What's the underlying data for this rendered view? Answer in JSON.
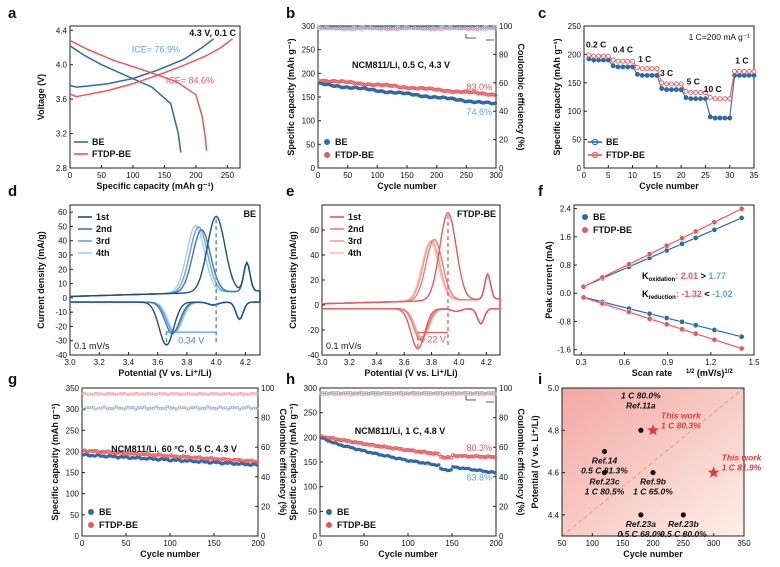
{
  "colors": {
    "be": "#2f6aa8",
    "ftdp": "#e8595c",
    "be_light": "#5aa8de",
    "ce_be": "#8fa9cc",
    "ce_ftdp": "#f09a9c",
    "axis": "#222222",
    "dash_blue": "#3e86c8",
    "dash_red": "#e8595c",
    "star": "#e53935",
    "dot": "#111111"
  },
  "panels": {
    "a": "a",
    "b": "b",
    "c": "c",
    "d": "d",
    "e": "e",
    "f": "f",
    "g": "g",
    "h": "h",
    "i": "i"
  },
  "chart_data": [
    {
      "id": "a",
      "type": "line",
      "xlabel": "Specific capacity (mAh g⁻¹)",
      "ylabel": "Voltage (V)",
      "xlim": [
        0,
        270
      ],
      "ylim": [
        2.8,
        4.45
      ],
      "xticks": [
        "0",
        "50",
        "100",
        "150",
        "200",
        "250"
      ],
      "yticks": [
        "2.8",
        "3.2",
        "3.6",
        "4.0",
        "4.4"
      ],
      "annotations": [
        "4.3 V, 0.1 C",
        "ICE= 76.9%",
        "ICE= 84.6%"
      ],
      "legend": [
        "BE",
        "FTDP-BE"
      ],
      "series": [
        {
          "name": "BE charge",
          "x": [
            0,
            10,
            25,
            60,
            100,
            140,
            180,
            210,
            228
          ],
          "y": [
            3.76,
            3.74,
            3.75,
            3.78,
            3.84,
            3.94,
            4.06,
            4.2,
            4.3
          ]
        },
        {
          "name": "BE discharge",
          "x": [
            0,
            20,
            50,
            90,
            130,
            160,
            172,
            176
          ],
          "y": [
            4.22,
            4.12,
            4.0,
            3.87,
            3.74,
            3.55,
            3.2,
            2.98
          ]
        },
        {
          "name": "FTDP-BE charge",
          "x": [
            0,
            10,
            25,
            60,
            100,
            140,
            180,
            215,
            240,
            258
          ],
          "y": [
            3.66,
            3.63,
            3.65,
            3.7,
            3.78,
            3.88,
            3.99,
            4.1,
            4.2,
            4.3
          ]
        },
        {
          "name": "FTDP-BE discharge",
          "x": [
            0,
            30,
            70,
            120,
            170,
            200,
            210,
            215,
            217
          ],
          "y": [
            4.28,
            4.17,
            4.05,
            3.93,
            3.8,
            3.65,
            3.4,
            3.15,
            3.0
          ]
        }
      ]
    },
    {
      "id": "b",
      "type": "scatter",
      "xlabel": "Cycle number",
      "ylabel": "Specific capacity (mAh g⁻¹)",
      "y2label": "Coulombic efficiency (%)",
      "xlim": [
        0,
        300
      ],
      "ylim": [
        0,
        300
      ],
      "y2lim": [
        0,
        100
      ],
      "xticks": [
        "0",
        "50",
        "100",
        "150",
        "200",
        "250",
        "300"
      ],
      "yticks": [
        "0",
        "50",
        "100",
        "150",
        "200",
        "250",
        "300"
      ],
      "y2ticks": [
        "0",
        "20",
        "40",
        "60",
        "80",
        "100"
      ],
      "annotations": [
        "NCM811/Li, 0.5 C, 4.3 V",
        "83.0%",
        "74.6%"
      ],
      "legend": [
        "BE",
        "FTDP-BE"
      ],
      "series": [
        {
          "name": "BE",
          "x": [
            0,
            300
          ],
          "y": [
            178,
            135
          ]
        },
        {
          "name": "FTDP-BE",
          "x": [
            0,
            300
          ],
          "y": [
            186,
            155
          ]
        },
        {
          "name": "CE BE",
          "x": [
            0,
            300
          ],
          "y": [
            98.5,
            99.0
          ]
        },
        {
          "name": "CE FTDP-BE",
          "x": [
            0,
            300
          ],
          "y": [
            97.8,
            98.5
          ]
        }
      ]
    },
    {
      "id": "c",
      "type": "line",
      "xlabel": "Cycle number",
      "ylabel": "Specific capacity (mAh g⁻¹)",
      "xlim": [
        0,
        35
      ],
      "ylim": [
        0,
        250
      ],
      "xticks": [
        "0",
        "5",
        "10",
        "15",
        "20",
        "25",
        "30",
        "35"
      ],
      "yticks": [
        "0",
        "50",
        "100",
        "150",
        "200",
        "250"
      ],
      "annotations": [
        "1 C=200 mA g⁻¹",
        "0.2 C",
        "0.4 C",
        "1 C",
        "3 C",
        "5 C",
        "10 C",
        "1 C"
      ],
      "legend": [
        "BE",
        "FTDP-BE"
      ],
      "series": [
        {
          "name": "BE",
          "steps": [
            190,
            178,
            163,
            138,
            122,
            88,
            163
          ]
        },
        {
          "name": "FTDP-BE",
          "steps": [
            197,
            188,
            175,
            148,
            133,
            122,
            170
          ]
        }
      ]
    },
    {
      "id": "d",
      "type": "line",
      "xlabel": "Potential (V vs. Li⁺/Li)",
      "ylabel": "Current density (mA/g)",
      "xlim": [
        3.0,
        4.3
      ],
      "ylim": [
        -40,
        65
      ],
      "xticks": [
        "3.0",
        "3.2",
        "3.4",
        "3.6",
        "3.8",
        "4.0",
        "4.2"
      ],
      "yticks": [
        "-40",
        "-30",
        "-20",
        "-10",
        "0",
        "10",
        "20",
        "30",
        "40",
        "50",
        "60"
      ],
      "annotations": [
        "BE",
        "0.1 mV/s",
        "0.34 V"
      ],
      "legend": [
        "1st",
        "2nd",
        "3rd",
        "4th"
      ],
      "peaks": {
        "anodic": [
          4.0,
          3.9,
          3.88,
          3.86
        ],
        "anodic_i": [
          53,
          44,
          46,
          47
        ],
        "cathodic": [
          3.66,
          3.7,
          3.71,
          3.72
        ],
        "cathodic_i": [
          -30,
          -22,
          -21,
          -21
        ]
      }
    },
    {
      "id": "e",
      "type": "line",
      "xlabel": "Potential (V vs. Li⁺/Li)",
      "ylabel": "Current density (mA/g)",
      "xlim": [
        3.0,
        4.3
      ],
      "ylim": [
        -40,
        80
      ],
      "xticks": [
        "3.0",
        "3.2",
        "3.4",
        "3.6",
        "3.8",
        "4.0",
        "4.2"
      ],
      "yticks": [
        "-40",
        "-20",
        "0",
        "20",
        "40",
        "60"
      ],
      "annotations": [
        "FTDP-BE",
        "0.1 mV/s",
        "0.22 V"
      ],
      "legend": [
        "1st",
        "2nd",
        "3rd",
        "4th"
      ],
      "peaks": {
        "anodic": [
          3.92,
          3.82,
          3.8,
          3.79
        ],
        "anodic_i": [
          70,
          49,
          48,
          47
        ],
        "cathodic": [
          3.7,
          3.72,
          3.73,
          3.73
        ],
        "cathodic_i": [
          -32,
          -25,
          -24,
          -24
        ]
      }
    },
    {
      "id": "f",
      "type": "scatter",
      "xlabel": "Scan rate",
      "ylabel": "Peak current (mA)",
      "xlim": [
        0.25,
        1.5
      ],
      "ylim": [
        -1.75,
        2.5
      ],
      "xticks": [
        "0.3",
        "0.6",
        "0.9",
        "1.2",
        "1.5"
      ],
      "yticks": [
        "-1.6",
        "-0.8",
        "0.0",
        "0.8",
        "1.6",
        "2.4"
      ],
      "annotations": [
        "2.01",
        "1.77",
        "-1.32",
        "-1.02"
      ],
      "annotation_words": {
        "k": "K",
        "oxidation": "oxidation",
        "reduction": "reduction",
        "gt": ">",
        "lt": "<"
      },
      "legend": [
        "BE",
        "FTDP-BE"
      ],
      "x": [
        0.316,
        0.447,
        0.632,
        0.775,
        0.894,
        1.0,
        1.095,
        1.225,
        1.414
      ],
      "series": [
        {
          "name": "BE ox",
          "slope": 1.77,
          "intercept": -0.37
        },
        {
          "name": "FTDP-BE ox",
          "slope": 2.01,
          "intercept": -0.45
        },
        {
          "name": "BE red",
          "slope": -1.02,
          "intercept": 0.21
        },
        {
          "name": "FTDP-BE red",
          "slope": -1.32,
          "intercept": 0.3
        }
      ]
    },
    {
      "id": "g",
      "type": "scatter",
      "xlabel": "Cycle number",
      "ylabel": "Specific capacity (mAh g⁻¹)",
      "y2label": "Coulombic efficiency (%)",
      "xlim": [
        0,
        200
      ],
      "ylim": [
        0,
        350
      ],
      "y2lim": [
        0,
        100
      ],
      "xticks": [
        "0",
        "50",
        "100",
        "150",
        "200"
      ],
      "yticks": [
        "0",
        "50",
        "100",
        "150",
        "200",
        "250",
        "300",
        "350"
      ],
      "y2ticks": [
        "0",
        "20",
        "40",
        "60",
        "80",
        "100"
      ],
      "annotations": [
        "NCM811/Li, 60 °C, 0.5 C, 4.3 V"
      ],
      "legend": [
        "BE",
        "FTDP-BE"
      ],
      "series": [
        {
          "name": "BE",
          "x": [
            0,
            200
          ],
          "y": [
            192,
            168
          ]
        },
        {
          "name": "FTDP-BE",
          "x": [
            0,
            200
          ],
          "y": [
            202,
            176
          ]
        },
        {
          "name": "CE BE",
          "x": [
            0,
            200
          ],
          "y": [
            86,
            87
          ]
        },
        {
          "name": "CE FTDP-BE",
          "x": [
            0,
            200
          ],
          "y": [
            96,
            96
          ]
        }
      ]
    },
    {
      "id": "h",
      "type": "scatter",
      "xlabel": "Cycle number",
      "ylabel": "Specific capacity (mAh g⁻¹)",
      "y2label": "Coulombic efficiency (%)",
      "xlim": [
        0,
        200
      ],
      "ylim": [
        0,
        300
      ],
      "y2lim": [
        0,
        100
      ],
      "xticks": [
        "0",
        "50",
        "100",
        "150",
        "200"
      ],
      "yticks": [
        "0",
        "50",
        "100",
        "150",
        "200",
        "250",
        "300"
      ],
      "y2ticks": [
        "0",
        "20",
        "40",
        "60",
        "80",
        "100"
      ],
      "annotations": [
        "NCM811/Li, 1 C, 4.8 V",
        "80.3%",
        "63.8%"
      ],
      "legend": [
        "BE",
        "FTDP-BE"
      ],
      "series": [
        {
          "name": "BE",
          "x": [
            0,
            20,
            60,
            100,
            140,
            160,
            200
          ],
          "y": [
            200,
            186,
            168,
            153,
            142,
            138,
            128
          ]
        },
        {
          "name": "FTDP-BE",
          "x": [
            0,
            20,
            60,
            100,
            140,
            160,
            200
          ],
          "y": [
            202,
            196,
            184,
            174,
            165,
            162,
            160
          ]
        },
        {
          "name": "CE BE",
          "x": [
            0,
            200
          ],
          "y": [
            96.5,
            97
          ]
        },
        {
          "name": "CE FTDP-BE",
          "x": [
            0,
            200
          ],
          "y": [
            95.5,
            96
          ]
        }
      ]
    },
    {
      "id": "i",
      "type": "scatter",
      "xlabel": "Cycle number",
      "ylabel": "Potential (V vs. Li⁺/Li)",
      "xlim": [
        50,
        350
      ],
      "ylim": [
        4.3,
        5.0
      ],
      "xticks": [
        "50",
        "100",
        "150",
        "200",
        "250",
        "300",
        "350"
      ],
      "yticks": [
        "4.4",
        "4.6",
        "4.8",
        "5.0"
      ],
      "points": [
        {
          "label": "Ref.14",
          "sub": "0.5 C 81.3%",
          "x": 120,
          "y": 4.7,
          "kind": "dot"
        },
        {
          "label": "Ref.11a",
          "sub": "1 C 80.0%",
          "x": 180,
          "y": 4.8,
          "kind": "dot"
        },
        {
          "label": "This work",
          "sub": "1 C 80.3%",
          "x": 200,
          "y": 4.8,
          "kind": "star"
        },
        {
          "label": "Ref.23c",
          "sub": "1 C 80.5%",
          "x": 120,
          "y": 4.6,
          "kind": "dot"
        },
        {
          "label": "Ref.9b",
          "sub": "1 C 65.0%",
          "x": 200,
          "y": 4.6,
          "kind": "dot"
        },
        {
          "label": "This work",
          "sub": "1 C 81.9%",
          "x": 300,
          "y": 4.6,
          "kind": "star"
        },
        {
          "label": "Ref.23a",
          "sub": "0.5 C 68.0%",
          "x": 180,
          "y": 4.4,
          "kind": "dot"
        },
        {
          "label": "Ref.23b",
          "sub": "0.5 C 80.0%",
          "x": 250,
          "y": 4.4,
          "kind": "dot"
        }
      ]
    }
  ]
}
